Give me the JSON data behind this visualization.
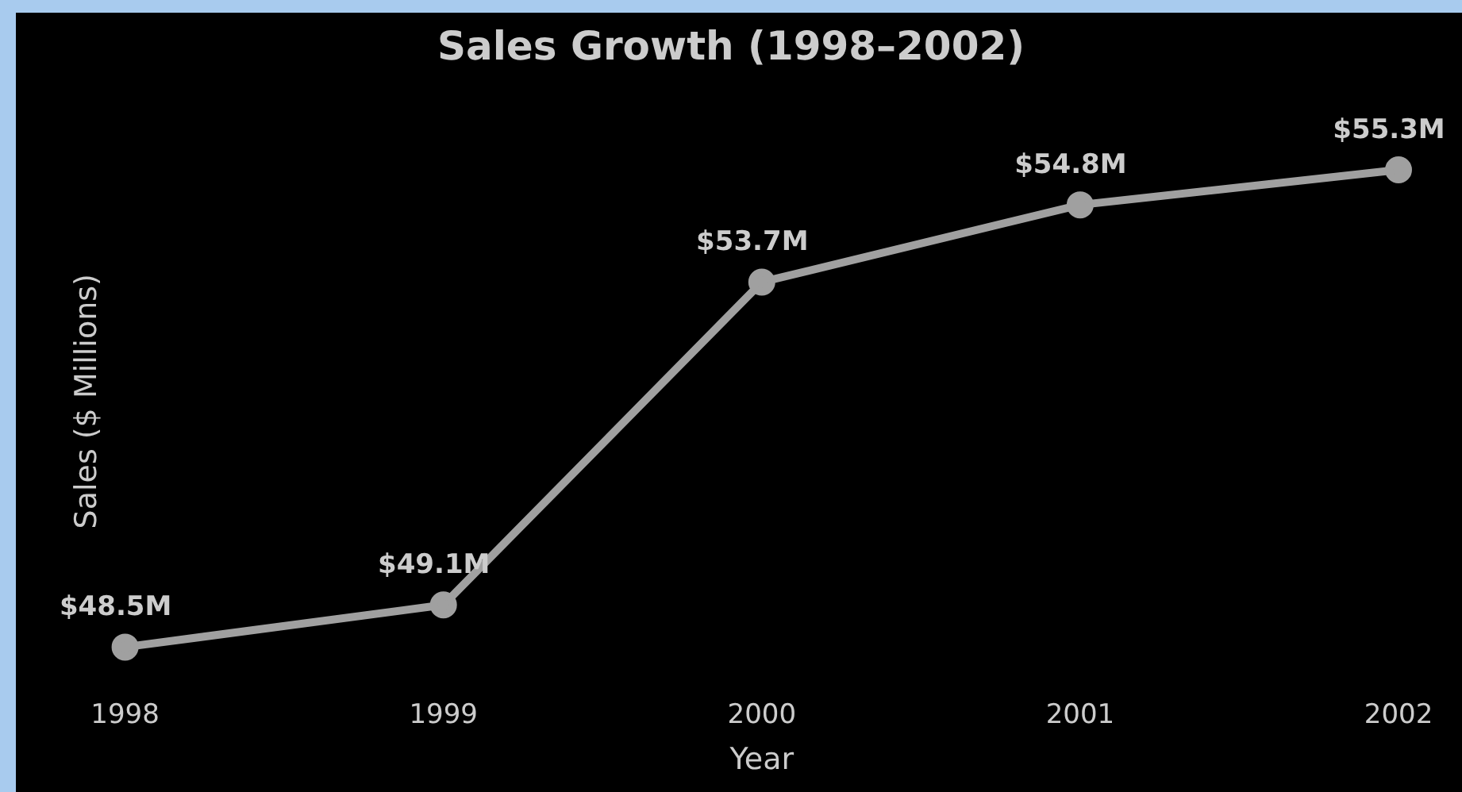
{
  "chart_data": {
    "type": "line",
    "title": "Sales Growth (1998–2002)",
    "xlabel": "Year",
    "ylabel": "Sales ($ Millions)",
    "categories": [
      "1998",
      "1999",
      "2000",
      "2001",
      "2002"
    ],
    "series": [
      {
        "color": "#a0a0a0",
        "values": [
          48.5,
          49.1,
          53.7,
          54.8,
          55.3
        ],
        "value_labels": [
          "$48.5M",
          "$49.1M",
          "$53.7M",
          "$54.8M",
          "$55.3M"
        ]
      }
    ],
    "grid": false,
    "legend": false,
    "marker": "circle",
    "line_style": "solid",
    "tick_labels": "x"
  }
}
